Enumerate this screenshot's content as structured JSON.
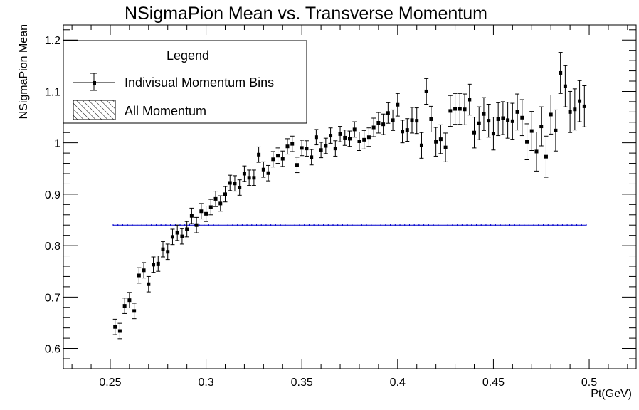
{
  "colors": {
    "points": "#000000",
    "reference_line": "#0000cc",
    "frame": "#000000",
    "background": "#ffffff"
  },
  "chart_data": {
    "type": "scatter",
    "title": "NSigmaPion Mean vs. Transverse Momentum",
    "xlabel": "Pt(GeV)",
    "ylabel": "NSigmaPion Mean",
    "xlim": [
      0.2255,
      0.5245
    ],
    "ylim": [
      0.5606,
      1.2294
    ],
    "x_ticks": [
      0.25,
      0.3,
      0.35,
      0.4,
      0.45,
      0.5
    ],
    "x_tick_labels": [
      "0.25",
      "0.3",
      "0.35",
      "0.4",
      "0.45",
      "0.5"
    ],
    "y_ticks": [
      0.6,
      0.7,
      0.8,
      0.9,
      1.0,
      1.1,
      1.2
    ],
    "y_tick_labels": [
      "0.6",
      "0.7",
      "0.8",
      "0.9",
      "1",
      "1.1",
      "1.2"
    ],
    "grid": false,
    "legend": {
      "title": "Legend",
      "position": "top-left",
      "entries": [
        {
          "label": "Indivisual Momentum Bins",
          "marker": "errorbar-square"
        },
        {
          "label": "All Momentum",
          "marker": "hatched-box"
        }
      ]
    },
    "series": [
      {
        "name": "Indivisual Momentum Bins",
        "x": [
          0.2525,
          0.255,
          0.2575,
          0.26,
          0.2625,
          0.265,
          0.2675,
          0.27,
          0.2725,
          0.275,
          0.2775,
          0.28,
          0.2825,
          0.285,
          0.2875,
          0.29,
          0.2925,
          0.295,
          0.2975,
          0.3,
          0.3025,
          0.305,
          0.3075,
          0.31,
          0.3125,
          0.315,
          0.3175,
          0.32,
          0.3225,
          0.325,
          0.3275,
          0.33,
          0.3325,
          0.335,
          0.3375,
          0.34,
          0.3425,
          0.345,
          0.3475,
          0.35,
          0.3525,
          0.355,
          0.3575,
          0.36,
          0.3625,
          0.365,
          0.3675,
          0.37,
          0.3725,
          0.375,
          0.3775,
          0.38,
          0.3825,
          0.385,
          0.3875,
          0.39,
          0.3925,
          0.395,
          0.3975,
          0.4,
          0.4025,
          0.405,
          0.4075,
          0.41,
          0.4125,
          0.415,
          0.4175,
          0.42,
          0.4225,
          0.425,
          0.4275,
          0.43,
          0.4325,
          0.435,
          0.4375,
          0.44,
          0.4425,
          0.445,
          0.4475,
          0.45,
          0.4525,
          0.455,
          0.4575,
          0.46,
          0.4625,
          0.465,
          0.4675,
          0.47,
          0.4725,
          0.475,
          0.4775,
          0.48,
          0.4825,
          0.485,
          0.4875,
          0.49,
          0.4925,
          0.495,
          0.4975
        ],
        "y": [
          0.642,
          0.634,
          0.683,
          0.694,
          0.673,
          0.742,
          0.752,
          0.725,
          0.763,
          0.765,
          0.793,
          0.788,
          0.817,
          0.825,
          0.818,
          0.832,
          0.858,
          0.84,
          0.867,
          0.862,
          0.875,
          0.891,
          0.882,
          0.9,
          0.922,
          0.921,
          0.913,
          0.94,
          0.932,
          0.932,
          0.977,
          0.948,
          0.941,
          0.968,
          0.975,
          0.969,
          0.993,
          0.998,
          0.957,
          0.99,
          0.989,
          0.972,
          1.011,
          0.986,
          0.994,
          1.014,
          0.989,
          1.017,
          1.01,
          1.008,
          1.026,
          1.003,
          1.006,
          1.011,
          1.03,
          1.039,
          1.036,
          1.058,
          1.044,
          1.074,
          1.022,
          1.025,
          1.044,
          1.043,
          0.995,
          1.1,
          1.046,
          1.002,
          1.007,
          0.991,
          1.062,
          1.066,
          1.066,
          1.065,
          1.084,
          1.02,
          1.038,
          1.056,
          1.043,
          1.018,
          1.046,
          1.048,
          1.044,
          1.042,
          1.06,
          1.049,
          1.002,
          1.023,
          0.983,
          1.032,
          0.973,
          1.055,
          1.024,
          1.136,
          1.11,
          1.06,
          1.065,
          1.081,
          1.071
        ],
        "yerr": [
          0.015,
          0.015,
          0.015,
          0.015,
          0.015,
          0.015,
          0.015,
          0.015,
          0.015,
          0.015,
          0.015,
          0.015,
          0.015,
          0.015,
          0.015,
          0.015,
          0.015,
          0.015,
          0.015,
          0.015,
          0.015,
          0.015,
          0.015,
          0.015,
          0.015,
          0.015,
          0.015,
          0.015,
          0.015,
          0.015,
          0.015,
          0.015,
          0.015,
          0.015,
          0.015,
          0.015,
          0.015,
          0.015,
          0.015,
          0.015,
          0.015,
          0.015,
          0.015,
          0.015,
          0.015,
          0.015,
          0.015,
          0.015,
          0.015,
          0.015,
          0.015,
          0.018,
          0.018,
          0.018,
          0.018,
          0.02,
          0.02,
          0.02,
          0.02,
          0.022,
          0.022,
          0.022,
          0.025,
          0.025,
          0.025,
          0.025,
          0.025,
          0.028,
          0.028,
          0.028,
          0.03,
          0.03,
          0.03,
          0.03,
          0.03,
          0.03,
          0.032,
          0.032,
          0.032,
          0.032,
          0.032,
          0.032,
          0.035,
          0.035,
          0.035,
          0.035,
          0.035,
          0.038,
          0.038,
          0.038,
          0.04,
          0.038,
          0.04,
          0.04,
          0.04,
          0.04,
          0.04,
          0.04,
          0.04
        ]
      },
      {
        "name": "All Momentum",
        "type": "line",
        "x": [
          0.2515,
          0.4985
        ],
        "y": [
          0.84,
          0.84
        ]
      }
    ]
  }
}
